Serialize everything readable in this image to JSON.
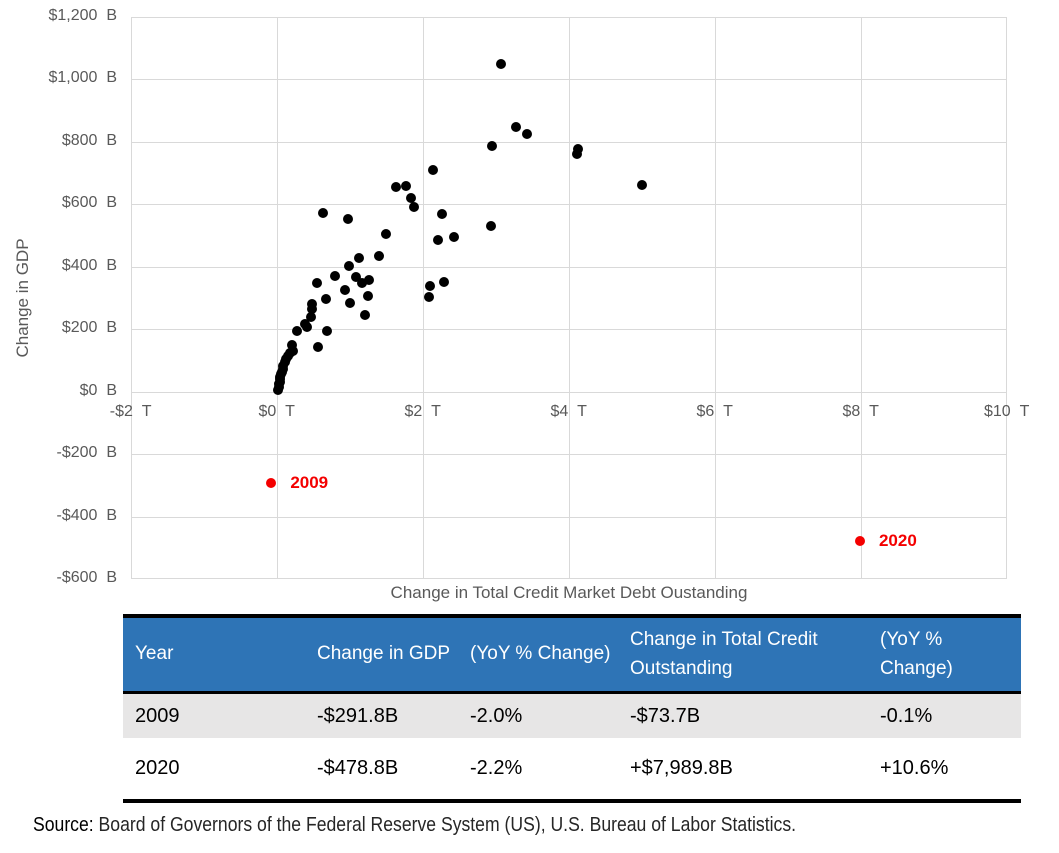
{
  "chart_data": {
    "type": "scatter",
    "title": "",
    "xlabel": "Change in Total Credit Market Debt Oustanding",
    "ylabel": "Change in GDP",
    "xlim": [
      -2,
      10
    ],
    "ylim": [
      -600,
      1200
    ],
    "x_unit": "trillions of dollars",
    "y_unit": "billions of dollars",
    "grid": true,
    "x_ticks": {
      "values": [
        -2,
        0,
        2,
        4,
        6,
        8,
        10
      ],
      "labels": [
        "-$2  T",
        "$0  T",
        "$2  T",
        "$4  T",
        "$6  T",
        "$8  T",
        "$10  T"
      ]
    },
    "y_ticks": {
      "values": [
        1200,
        1000,
        800,
        600,
        400,
        200,
        0,
        -200,
        -400,
        -600
      ],
      "labels": [
        "$1,200  B",
        "$1,000  B",
        "$800  B",
        "$600  B",
        "$400  B",
        "$200  B",
        "$0  B",
        "-$200  B",
        "-$400  B",
        "-$600  B"
      ]
    },
    "series": [
      {
        "name": "annual-changes",
        "color": "#000000",
        "points": [
          [
            0.02,
            6
          ],
          [
            0.03,
            15
          ],
          [
            0.03,
            24
          ],
          [
            0.04,
            32
          ],
          [
            0.05,
            40
          ],
          [
            0.05,
            48
          ],
          [
            0.06,
            56
          ],
          [
            0.07,
            64
          ],
          [
            0.08,
            73
          ],
          [
            0.09,
            83
          ],
          [
            0.11,
            93
          ],
          [
            0.13,
            104
          ],
          [
            0.15,
            113
          ],
          [
            0.18,
            122
          ],
          [
            0.22,
            131
          ],
          [
            0.21,
            150
          ],
          [
            0.28,
            195
          ],
          [
            0.41,
            208
          ],
          [
            0.39,
            216
          ],
          [
            0.47,
            240
          ],
          [
            0.49,
            263
          ],
          [
            0.48,
            281
          ],
          [
            0.56,
            141
          ],
          [
            0.55,
            348
          ],
          [
            0.64,
            572
          ],
          [
            0.68,
            296
          ],
          [
            0.69,
            194
          ],
          [
            0.8,
            370
          ],
          [
            0.93,
            324
          ],
          [
            0.97,
            552
          ],
          [
            0.99,
            403
          ],
          [
            1.0,
            283
          ],
          [
            1.08,
            367
          ],
          [
            1.13,
            428
          ],
          [
            1.17,
            346
          ],
          [
            1.21,
            245
          ],
          [
            1.25,
            307
          ],
          [
            1.27,
            358
          ],
          [
            1.4,
            435
          ],
          [
            1.5,
            504
          ],
          [
            1.63,
            656
          ],
          [
            1.77,
            657
          ],
          [
            1.84,
            620
          ],
          [
            1.88,
            590
          ],
          [
            2.09,
            301
          ],
          [
            2.1,
            339
          ],
          [
            2.14,
            710
          ],
          [
            2.21,
            486
          ],
          [
            2.26,
            568
          ],
          [
            2.29,
            351
          ],
          [
            2.43,
            493
          ],
          [
            2.93,
            530
          ],
          [
            2.95,
            787
          ],
          [
            3.07,
            1047
          ],
          [
            3.28,
            846
          ],
          [
            3.43,
            824
          ],
          [
            4.12,
            760
          ],
          [
            4.13,
            777
          ],
          [
            5.01,
            660
          ]
        ]
      }
    ],
    "highlights": [
      {
        "label": "2009",
        "x": -0.0737,
        "y": -291.8,
        "color": "#f40000"
      },
      {
        "label": "2020",
        "x": 7.9898,
        "y": -478.8,
        "color": "#f40000"
      }
    ]
  },
  "table": {
    "header_bg": "#2e74b6",
    "headers": [
      "Year",
      "Change in GDP",
      "(YoY % Change)",
      "Change in Total Credit Outstanding",
      "(YoY % Change)"
    ],
    "rows": [
      {
        "cells": [
          "2009",
          "-$291.8B",
          "-2.0%",
          "-$73.7B",
          "-0.1%"
        ]
      },
      {
        "cells": [
          "2020",
          "-$478.8B",
          "-2.2%",
          "+$7,989.8B",
          "+10.6%"
        ]
      }
    ]
  },
  "source": {
    "label": "Source:",
    "text": "Board of Governors of the Federal Reserve System (US), U.S. Bureau of Labor Statistics."
  }
}
